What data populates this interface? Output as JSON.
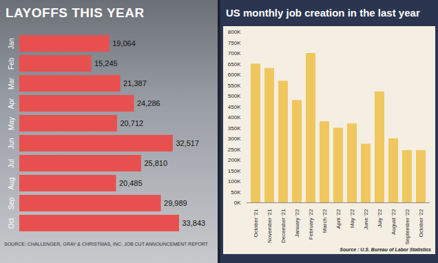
{
  "chart_data": [
    {
      "type": "bar",
      "title": "LAYOFFS THIS YEAR",
      "orientation": "horizontal",
      "categories": [
        "Jan",
        "Feb",
        "Mar",
        "Apr",
        "May",
        "Jun",
        "Jul",
        "Aug",
        "Sep",
        "Oct"
      ],
      "values": [
        19064,
        15245,
        21387,
        24286,
        20712,
        32517,
        25810,
        20485,
        29989,
        33843
      ],
      "value_labels": [
        "19,064",
        "15,245",
        "21,387",
        "24,286",
        "20,712",
        "32,517",
        "25,810",
        "20,485",
        "29,989",
        "33,843"
      ],
      "data_labels": true,
      "tick_labels": "y",
      "color": "#e8504f",
      "caption": "SOURCE: CHALLENGER, GRAY & CHRISTMAS, INC. JOB CUT ANNOUNCEMENT REPORT"
    },
    {
      "type": "bar",
      "title": "US monthly job creation in the last year",
      "categories": [
        "October '21",
        "November '21",
        "December '21",
        "January '22",
        "February '22",
        "March '22",
        "April '22",
        "May '22",
        "June '22",
        "July '22",
        "August '22",
        "September '22",
        "October '22"
      ],
      "values": [
        650000,
        630000,
        570000,
        480000,
        700000,
        380000,
        350000,
        370000,
        275000,
        520000,
        300000,
        245000,
        245000
      ],
      "color": "#f0c75e",
      "grid": false,
      "ylim": [
        0,
        800000
      ],
      "yticks": [
        {
          "value": 0,
          "label": "0K"
        },
        {
          "value": 50000,
          "label": "50K"
        },
        {
          "value": 100000,
          "label": "100K"
        },
        {
          "value": 150000,
          "label": "150K"
        },
        {
          "value": 200000,
          "label": "200K"
        },
        {
          "value": 250000,
          "label": "250K"
        },
        {
          "value": 300000,
          "label": "300K"
        },
        {
          "value": 350000,
          "label": "350K"
        },
        {
          "value": 400000,
          "label": "400K"
        },
        {
          "value": 450000,
          "label": "450K"
        },
        {
          "value": 500000,
          "label": "500K"
        },
        {
          "value": 550000,
          "label": "550K"
        },
        {
          "value": 600000,
          "label": "600K"
        },
        {
          "value": 650000,
          "label": "650K"
        },
        {
          "value": 700000,
          "label": "700K"
        },
        {
          "value": 750000,
          "label": "750K"
        },
        {
          "value": 800000,
          "label": "800K"
        }
      ],
      "caption": "Source : U.S. Bureau of Labor Statistics"
    }
  ]
}
